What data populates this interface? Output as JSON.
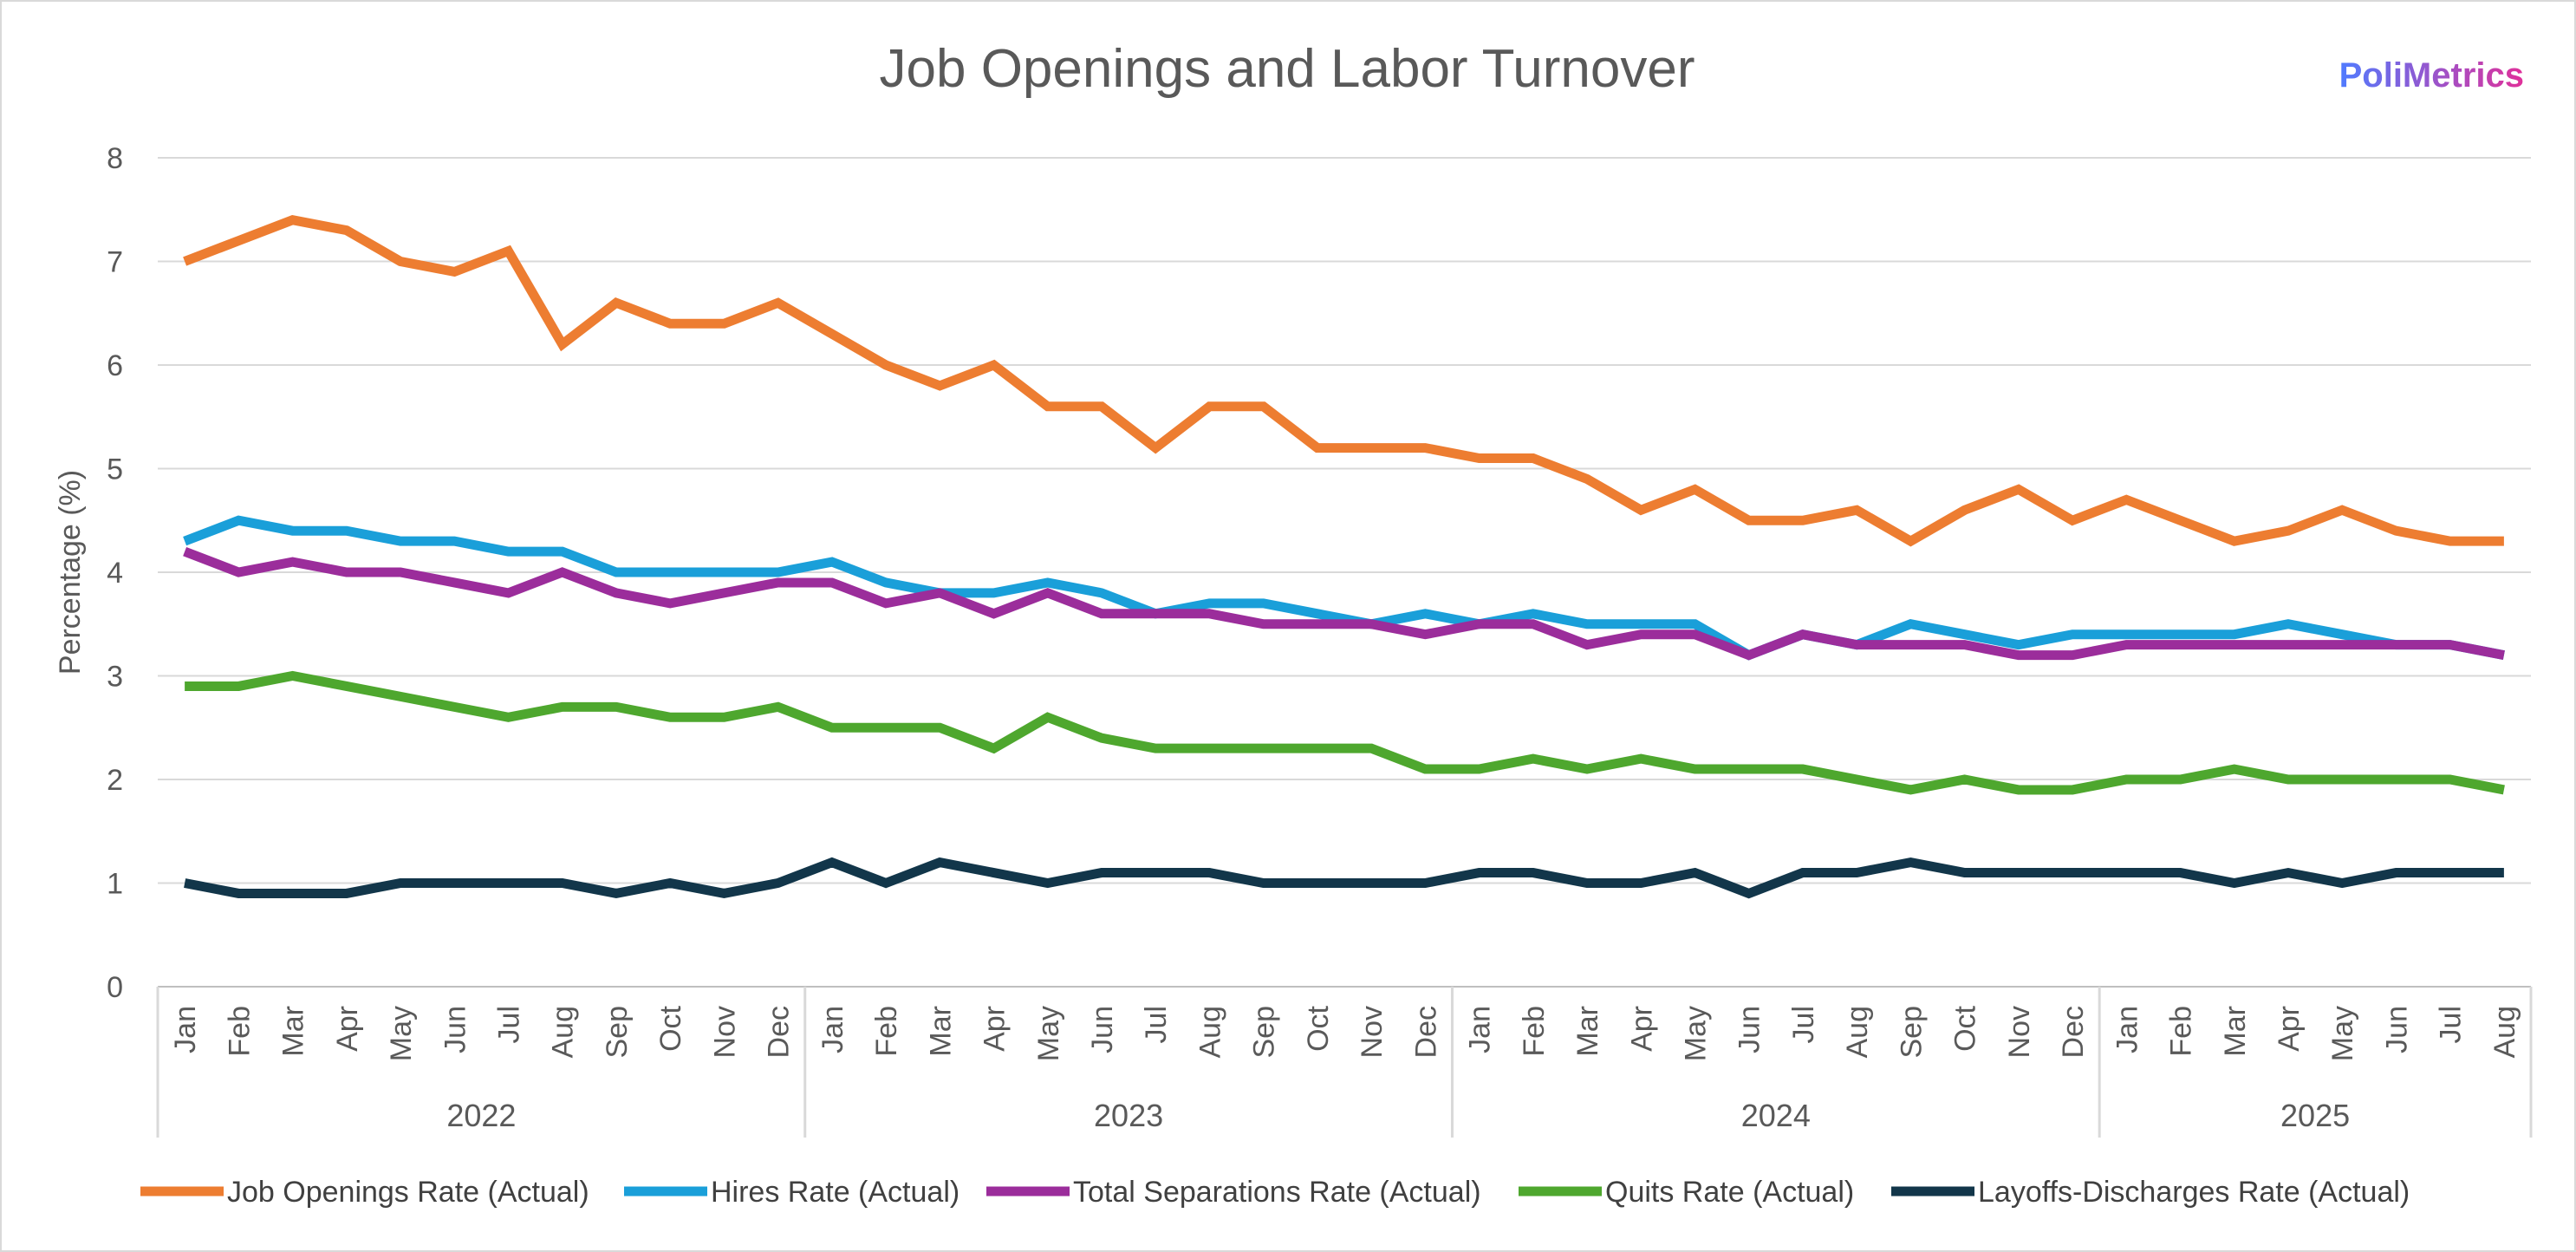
{
  "brand": {
    "name": "PoliMetrics",
    "gradient_start": "#4f7bff",
    "gradient_end": "#e0309a"
  },
  "chart_data": {
    "type": "line",
    "title": "Job Openings and Labor Turnover",
    "xlabel": "",
    "ylabel": "Percentage (%)",
    "ylim": [
      0,
      8
    ],
    "yticks": [
      0,
      1,
      2,
      3,
      4,
      5,
      6,
      7,
      8
    ],
    "grid": true,
    "legend_position": "bottom",
    "categories": [
      "Jan",
      "Feb",
      "Mar",
      "Apr",
      "May",
      "Jun",
      "Jul",
      "Aug",
      "Sep",
      "Oct",
      "Nov",
      "Dec",
      "Jan",
      "Feb",
      "Mar",
      "Apr",
      "May",
      "Jun",
      "Jul",
      "Aug",
      "Sep",
      "Oct",
      "Nov",
      "Dec",
      "Jan",
      "Feb",
      "Mar",
      "Apr",
      "May",
      "Jun",
      "Jul",
      "Aug",
      "Sep",
      "Oct",
      "Nov",
      "Dec",
      "Jan",
      "Feb",
      "Mar",
      "Apr",
      "May",
      "Jun",
      "Jul",
      "Aug"
    ],
    "groups": [
      {
        "label": "2022",
        "count": 12
      },
      {
        "label": "2023",
        "count": 12
      },
      {
        "label": "2024",
        "count": 12
      },
      {
        "label": "2025",
        "count": 8
      }
    ],
    "series": [
      {
        "name": "Job Openings Rate (Actual)",
        "color": "#ed7d31",
        "values": [
          7.0,
          7.2,
          7.4,
          7.3,
          7.0,
          6.9,
          7.1,
          6.2,
          6.6,
          6.4,
          6.4,
          6.6,
          6.3,
          6.0,
          5.8,
          6.0,
          5.6,
          5.6,
          5.2,
          5.6,
          5.6,
          5.2,
          5.2,
          5.2,
          5.1,
          5.1,
          4.9,
          4.6,
          4.8,
          4.5,
          4.5,
          4.6,
          4.3,
          4.6,
          4.8,
          4.5,
          4.7,
          4.5,
          4.3,
          4.4,
          4.6,
          4.4,
          4.3,
          4.3
        ]
      },
      {
        "name": "Hires Rate (Actual)",
        "color": "#1a9fd9",
        "values": [
          4.3,
          4.5,
          4.4,
          4.4,
          4.3,
          4.3,
          4.2,
          4.2,
          4.0,
          4.0,
          4.0,
          4.0,
          4.1,
          3.9,
          3.8,
          3.8,
          3.9,
          3.8,
          3.6,
          3.7,
          3.7,
          3.6,
          3.5,
          3.6,
          3.5,
          3.6,
          3.5,
          3.5,
          3.5,
          3.2,
          3.4,
          3.3,
          3.5,
          3.4,
          3.3,
          3.4,
          3.4,
          3.4,
          3.4,
          3.5,
          3.4,
          3.3,
          3.3,
          3.2
        ]
      },
      {
        "name": "Total Separations Rate (Actual)",
        "color": "#9b2d9b",
        "values": [
          4.2,
          4.0,
          4.1,
          4.0,
          4.0,
          3.9,
          3.8,
          4.0,
          3.8,
          3.7,
          3.8,
          3.9,
          3.9,
          3.7,
          3.8,
          3.6,
          3.8,
          3.6,
          3.6,
          3.6,
          3.5,
          3.5,
          3.5,
          3.4,
          3.5,
          3.5,
          3.3,
          3.4,
          3.4,
          3.2,
          3.4,
          3.3,
          3.3,
          3.3,
          3.2,
          3.2,
          3.3,
          3.3,
          3.3,
          3.3,
          3.3,
          3.3,
          3.3,
          3.2
        ]
      },
      {
        "name": "Quits Rate (Actual)",
        "color": "#4ea72e",
        "values": [
          2.9,
          2.9,
          3.0,
          2.9,
          2.8,
          2.7,
          2.6,
          2.7,
          2.7,
          2.6,
          2.6,
          2.7,
          2.5,
          2.5,
          2.5,
          2.3,
          2.6,
          2.4,
          2.3,
          2.3,
          2.3,
          2.3,
          2.3,
          2.1,
          2.1,
          2.2,
          2.1,
          2.2,
          2.1,
          2.1,
          2.1,
          2.0,
          1.9,
          2.0,
          1.9,
          1.9,
          2.0,
          2.0,
          2.1,
          2.0,
          2.0,
          2.0,
          2.0,
          1.9
        ]
      },
      {
        "name": "Layoffs-Discharges Rate (Actual)",
        "color": "#12364a",
        "values": [
          1.0,
          0.9,
          0.9,
          0.9,
          1.0,
          1.0,
          1.0,
          1.0,
          0.9,
          1.0,
          0.9,
          1.0,
          1.2,
          1.0,
          1.2,
          1.1,
          1.0,
          1.1,
          1.1,
          1.1,
          1.0,
          1.0,
          1.0,
          1.0,
          1.1,
          1.1,
          1.0,
          1.0,
          1.1,
          0.9,
          1.1,
          1.1,
          1.2,
          1.1,
          1.1,
          1.1,
          1.1,
          1.1,
          1.0,
          1.1,
          1.0,
          1.1,
          1.1,
          1.1
        ]
      }
    ]
  }
}
